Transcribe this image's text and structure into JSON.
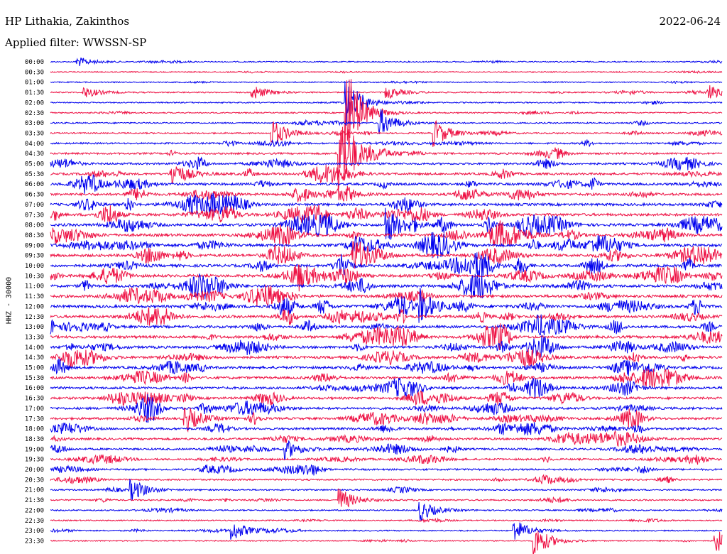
{
  "header": {
    "station": "HP Lithakia, Zakinthos",
    "date": "2022-06-24",
    "filter": "Applied filter: WWSSN-SP"
  },
  "chart_data": {
    "type": "line",
    "chart_kind": "helicorder",
    "channel_label": "HHZ - 30000",
    "colors": [
      "#0000ee",
      "#ee1144"
    ],
    "grid": false,
    "legend": "none",
    "rows": [
      {
        "label": "00:00",
        "amp": 0.15
      },
      {
        "label": "00:30",
        "amp": 0.12
      },
      {
        "label": "01:00",
        "amp": 0.12
      },
      {
        "label": "01:30",
        "amp": 0.2
      },
      {
        "label": "02:00",
        "amp": 0.18
      },
      {
        "label": "02:30",
        "amp": 0.2
      },
      {
        "label": "03:00",
        "amp": 0.25
      },
      {
        "label": "03:30",
        "amp": 0.3
      },
      {
        "label": "04:00",
        "amp": 0.45
      },
      {
        "label": "04:30",
        "amp": 0.55
      },
      {
        "label": "05:00",
        "amp": 0.6
      },
      {
        "label": "05:30",
        "amp": 0.7
      },
      {
        "label": "06:00",
        "amp": 0.8
      },
      {
        "label": "06:30",
        "amp": 0.85
      },
      {
        "label": "07:00",
        "amp": 0.9
      },
      {
        "label": "07:30",
        "amp": 0.95
      },
      {
        "label": "08:00",
        "amp": 1.0
      },
      {
        "label": "08:30",
        "amp": 1.0
      },
      {
        "label": "09:00",
        "amp": 1.0
      },
      {
        "label": "09:30",
        "amp": 1.0
      },
      {
        "label": "10:00",
        "amp": 1.0
      },
      {
        "label": "10:30",
        "amp": 1.0
      },
      {
        "label": "11:00",
        "amp": 1.0
      },
      {
        "label": "11:30",
        "amp": 1.0
      },
      {
        "label": "12:00",
        "amp": 1.0
      },
      {
        "label": "12:30",
        "amp": 1.0
      },
      {
        "label": "13:00",
        "amp": 0.95
      },
      {
        "label": "13:30",
        "amp": 0.95
      },
      {
        "label": "14:00",
        "amp": 0.9
      },
      {
        "label": "14:30",
        "amp": 0.9
      },
      {
        "label": "15:00",
        "amp": 0.9
      },
      {
        "label": "15:30",
        "amp": 0.85
      },
      {
        "label": "16:00",
        "amp": 0.85
      },
      {
        "label": "16:30",
        "amp": 0.8
      },
      {
        "label": "17:00",
        "amp": 0.8
      },
      {
        "label": "17:30",
        "amp": 0.75
      },
      {
        "label": "18:00",
        "amp": 0.75
      },
      {
        "label": "18:30",
        "amp": 0.7
      },
      {
        "label": "19:00",
        "amp": 0.6
      },
      {
        "label": "19:30",
        "amp": 0.55
      },
      {
        "label": "20:00",
        "amp": 0.5
      },
      {
        "label": "20:30",
        "amp": 0.4
      },
      {
        "label": "21:00",
        "amp": 0.3
      },
      {
        "label": "21:30",
        "amp": 0.3
      },
      {
        "label": "22:00",
        "amp": 0.25
      },
      {
        "label": "22:30",
        "amp": 0.2
      },
      {
        "label": "23:00",
        "amp": 0.2
      },
      {
        "label": "23:30",
        "amp": 0.15
      }
    ],
    "events": [
      {
        "row": 0,
        "t": 0.04,
        "amp": 1.0
      },
      {
        "row": 3,
        "t": 0.05,
        "amp": 1.2
      },
      {
        "row": 3,
        "t": 0.3,
        "amp": 1.6
      },
      {
        "row": 3,
        "t": 0.5,
        "amp": 1.4
      },
      {
        "row": 3,
        "t": 0.98,
        "amp": 1.5
      },
      {
        "row": 4,
        "t": 0.44,
        "amp": 5.0
      },
      {
        "row": 5,
        "t": 0.44,
        "amp": 10.0
      },
      {
        "row": 6,
        "t": 0.49,
        "amp": 3.0
      },
      {
        "row": 7,
        "t": 0.33,
        "amp": 3.0
      },
      {
        "row": 7,
        "t": 0.57,
        "amp": 3.0
      },
      {
        "row": 9,
        "t": 0.43,
        "amp": 9.0
      },
      {
        "row": 11,
        "t": 0.18,
        "amp": 3.0
      },
      {
        "row": 16,
        "t": 0.5,
        "amp": 4.0
      },
      {
        "row": 19,
        "t": 0.45,
        "amp": 4.0
      },
      {
        "row": 24,
        "t": 0.55,
        "amp": 3.5
      },
      {
        "row": 35,
        "t": 0.2,
        "amp": 3.0
      },
      {
        "row": 38,
        "t": 0.35,
        "amp": 2.0
      },
      {
        "row": 42,
        "t": 0.12,
        "amp": 2.0
      },
      {
        "row": 43,
        "t": 0.43,
        "amp": 2.5
      },
      {
        "row": 44,
        "t": 0.55,
        "amp": 2.2
      },
      {
        "row": 46,
        "t": 0.27,
        "amp": 2.0
      },
      {
        "row": 46,
        "t": 0.69,
        "amp": 2.5
      },
      {
        "row": 47,
        "t": 0.72,
        "amp": 3.5
      },
      {
        "row": 47,
        "t": 0.99,
        "amp": 2.5
      }
    ]
  }
}
